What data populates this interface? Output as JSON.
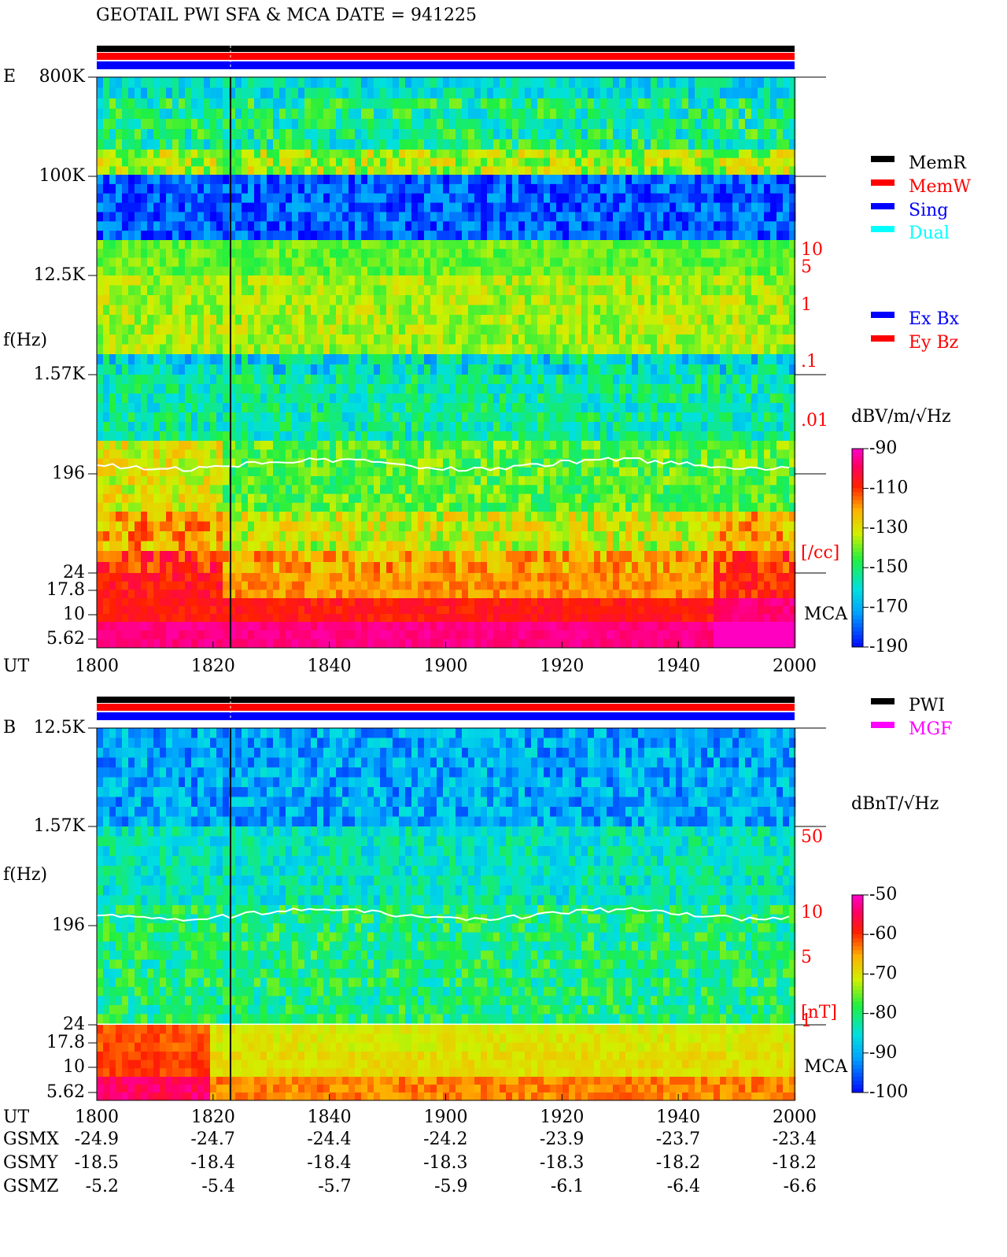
{
  "chart_data": [
    {
      "type": "spectrogram",
      "title": "GEOTAIL  PWI SFA & MCA   DATE = 941225",
      "component": "E",
      "y_axis_label": "f(Hz)",
      "freq_labels": [
        "800K",
        "100K",
        "12.5K",
        "1.57K",
        "196",
        "24",
        "17.8",
        "10",
        "5.62"
      ],
      "density_labels": [
        "10",
        "5",
        "1",
        ".1",
        ".01",
        "[/cc]"
      ],
      "mca_label": "MCA",
      "x_axis_label": "UT",
      "x_labels": [
        "1800",
        "1820",
        "1840",
        "1900",
        "1920",
        "1940",
        "2000"
      ],
      "legend": [
        {
          "name": "MemR",
          "color": "#000000"
        },
        {
          "name": "MemW",
          "color": "#ff0000"
        },
        {
          "name": "Sing",
          "color": "#0000ff"
        },
        {
          "name": "Dual",
          "color": "#00ffff"
        },
        {
          "name": "Ex Bx",
          "color": "#0000ff"
        },
        {
          "name": "Ey Bz",
          "color": "#ff0000"
        }
      ],
      "colorbar_label": "dBV/m/√Hz",
      "clim": [
        -190,
        -90
      ],
      "cticks": [
        -90,
        -110,
        -130,
        -150,
        -170,
        -190
      ]
    },
    {
      "type": "spectrogram",
      "component": "B",
      "y_axis_label": "f(Hz)",
      "freq_labels": [
        "12.5K",
        "1.57K",
        "196",
        "24",
        "17.8",
        "10",
        "5.62"
      ],
      "density_labels": [
        "50",
        "10",
        "5",
        "[nT]",
        "1"
      ],
      "mca_label": "MCA",
      "x_axis_label": "UT",
      "x_labels": [
        "1800",
        "1820",
        "1840",
        "1900",
        "1920",
        "1940",
        "2000"
      ],
      "legend": [
        {
          "name": "PWI",
          "color": "#000000"
        },
        {
          "name": "MGF",
          "color": "#ff00ff"
        }
      ],
      "colorbar_label": "dBnT/√Hz",
      "clim": [
        -100,
        -50
      ],
      "cticks": [
        -50,
        -60,
        -70,
        -80,
        -90,
        -100
      ],
      "orbit": [
        {
          "name": "GSMX",
          "values": [
            -24.9,
            -24.7,
            -24.4,
            -24.2,
            -23.9,
            -23.7,
            -23.4
          ]
        },
        {
          "name": "GSMY",
          "values": [
            -18.5,
            -18.4,
            -18.4,
            -18.3,
            -18.3,
            -18.2,
            -18.2
          ]
        },
        {
          "name": "GSMZ",
          "values": [
            -5.2,
            -5.4,
            -5.7,
            -5.9,
            -6.1,
            -6.4,
            -6.6
          ]
        }
      ]
    }
  ]
}
